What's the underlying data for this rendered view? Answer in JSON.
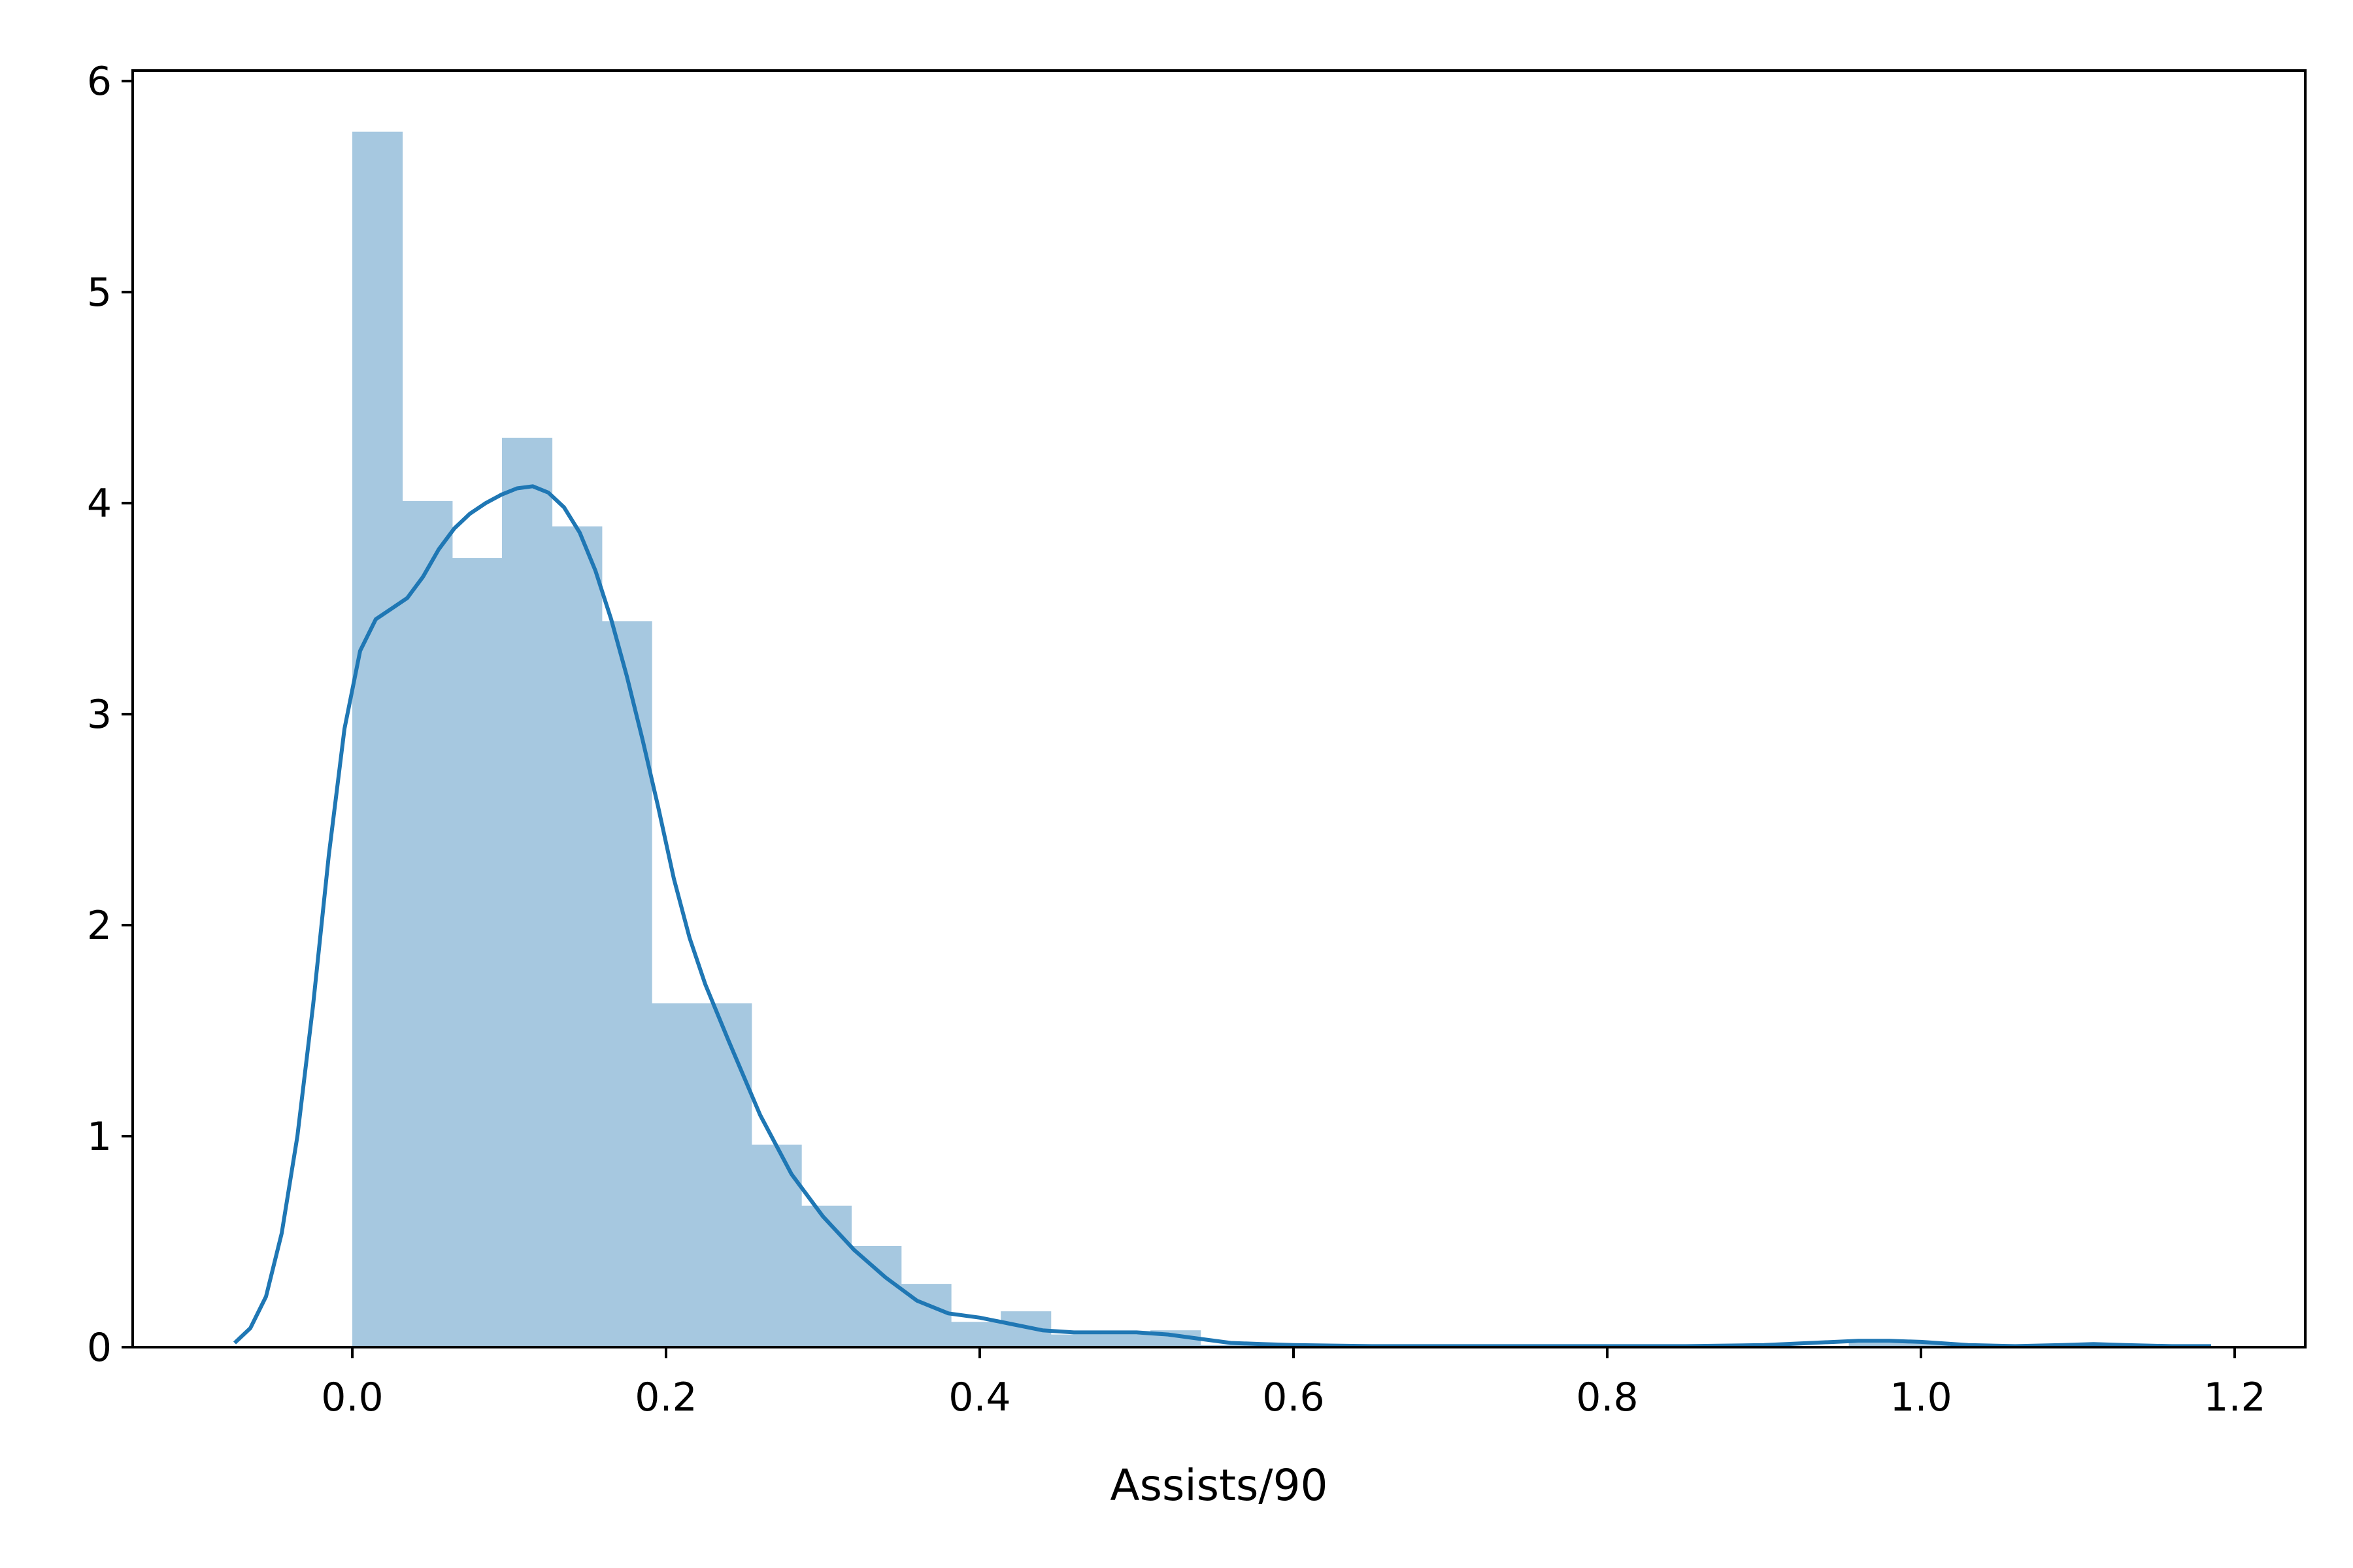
{
  "chart_data": {
    "type": "histogram",
    "title": "",
    "xlabel": "Assists/90",
    "ylabel": "",
    "xlim": [
      -0.14,
      1.245
    ],
    "ylim": [
      0,
      6.05
    ],
    "x_ticks": [
      0.0,
      0.2,
      0.4,
      0.6,
      0.8,
      1.0,
      1.2
    ],
    "x_tick_labels": [
      "0.0",
      "0.2",
      "0.4",
      "0.6",
      "0.8",
      "1.0",
      "1.2"
    ],
    "y_ticks": [
      0,
      1,
      2,
      3,
      4,
      5,
      6
    ],
    "y_tick_labels": [
      "0",
      "1",
      "2",
      "3",
      "4",
      "5",
      "6"
    ],
    "grid": false,
    "legend": "none",
    "colors": {
      "bars": "#a6c8e0",
      "kde": "#1f77b4",
      "axes": "#000000"
    },
    "histogram": {
      "bin_width": 0.0318,
      "bins": [
        {
          "x0": 0.0,
          "height": 5.76
        },
        {
          "x0": 0.0318,
          "height": 4.01
        },
        {
          "x0": 0.0636,
          "height": 3.74
        },
        {
          "x0": 0.0954,
          "height": 4.31
        },
        {
          "x0": 0.1272,
          "height": 3.89
        },
        {
          "x0": 0.159,
          "height": 3.44
        },
        {
          "x0": 0.1908,
          "height": 1.63
        },
        {
          "x0": 0.2226,
          "height": 1.63
        },
        {
          "x0": 0.2544,
          "height": 0.96
        },
        {
          "x0": 0.2862,
          "height": 0.67
        },
        {
          "x0": 0.318,
          "height": 0.48
        },
        {
          "x0": 0.3498,
          "height": 0.3
        },
        {
          "x0": 0.3816,
          "height": 0.12
        },
        {
          "x0": 0.4134,
          "height": 0.17
        },
        {
          "x0": 0.4452,
          "height": 0.06
        },
        {
          "x0": 0.477,
          "height": 0.06
        },
        {
          "x0": 0.5088,
          "height": 0.08
        },
        {
          "x0": 0.5406,
          "height": 0.01
        },
        {
          "x0": 0.5724,
          "height": 0.01
        },
        {
          "x0": 0.6042,
          "height": 0.0
        },
        {
          "x0": 0.636,
          "height": 0.0
        },
        {
          "x0": 0.6678,
          "height": 0.0
        },
        {
          "x0": 0.6996,
          "height": 0.0
        },
        {
          "x0": 0.7314,
          "height": 0.0
        },
        {
          "x0": 0.7632,
          "height": 0.0
        },
        {
          "x0": 0.795,
          "height": 0.0
        },
        {
          "x0": 0.8268,
          "height": 0.0
        },
        {
          "x0": 0.8586,
          "height": 0.0
        },
        {
          "x0": 0.8904,
          "height": 0.0
        },
        {
          "x0": 0.9222,
          "height": 0.0
        },
        {
          "x0": 0.954,
          "height": 0.02
        },
        {
          "x0": 0.9858,
          "height": 0.02
        },
        {
          "x0": 1.0176,
          "height": 0.0
        },
        {
          "x0": 1.0494,
          "height": 0.0
        },
        {
          "x0": 1.0812,
          "height": 0.01
        },
        {
          "x0": 1.113,
          "height": 0.01
        },
        {
          "x0": 1.1448,
          "height": 0.0
        }
      ]
    },
    "kde": {
      "x": [
        -0.075,
        -0.065,
        -0.055,
        -0.045,
        -0.035,
        -0.025,
        -0.015,
        -0.005,
        0.005,
        0.015,
        0.025,
        0.035,
        0.045,
        0.055,
        0.065,
        0.075,
        0.085,
        0.095,
        0.105,
        0.115,
        0.125,
        0.135,
        0.145,
        0.155,
        0.165,
        0.175,
        0.185,
        0.195,
        0.205,
        0.215,
        0.225,
        0.24,
        0.26,
        0.28,
        0.3,
        0.32,
        0.34,
        0.36,
        0.38,
        0.4,
        0.42,
        0.44,
        0.46,
        0.48,
        0.5,
        0.52,
        0.54,
        0.56,
        0.58,
        0.6,
        0.65,
        0.7,
        0.75,
        0.8,
        0.85,
        0.9,
        0.93,
        0.96,
        0.98,
        1.0,
        1.03,
        1.06,
        1.09,
        1.11,
        1.13,
        1.16,
        1.185
      ],
      "y": [
        0.02,
        0.09,
        0.24,
        0.54,
        1.0,
        1.62,
        2.33,
        2.93,
        3.3,
        3.45,
        3.5,
        3.55,
        3.65,
        3.78,
        3.88,
        3.95,
        4.0,
        4.04,
        4.07,
        4.08,
        4.05,
        3.98,
        3.86,
        3.68,
        3.45,
        3.18,
        2.88,
        2.56,
        2.22,
        1.94,
        1.72,
        1.45,
        1.1,
        0.82,
        0.62,
        0.46,
        0.33,
        0.22,
        0.16,
        0.14,
        0.11,
        0.08,
        0.07,
        0.07,
        0.07,
        0.06,
        0.04,
        0.02,
        0.015,
        0.01,
        0.005,
        0.005,
        0.005,
        0.005,
        0.005,
        0.01,
        0.02,
        0.03,
        0.03,
        0.025,
        0.01,
        0.005,
        0.01,
        0.015,
        0.01,
        0.005,
        0.005
      ]
    }
  }
}
